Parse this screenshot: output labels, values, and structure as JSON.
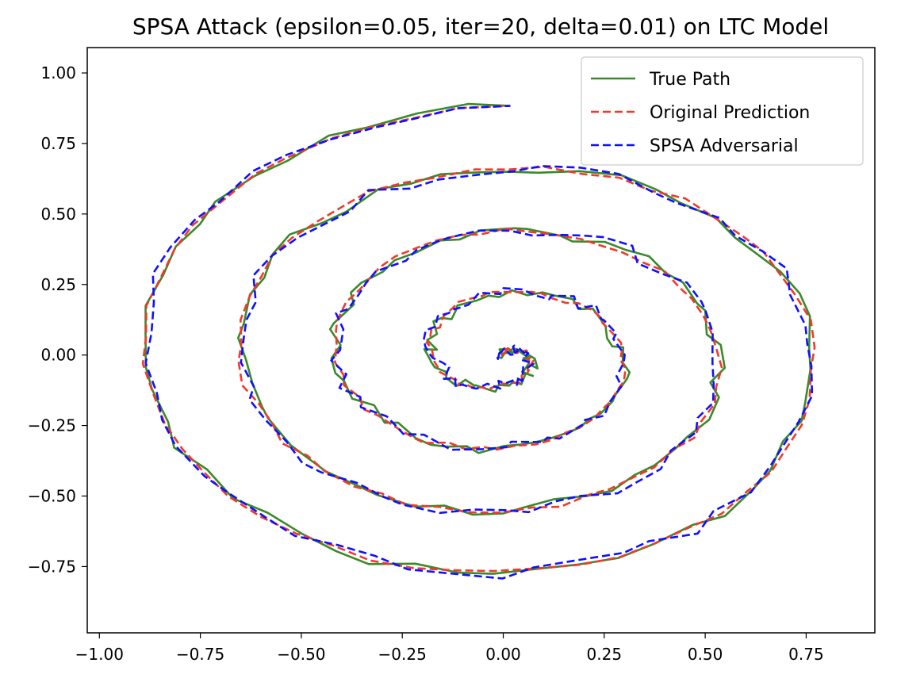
{
  "chart_data": {
    "type": "line",
    "title": "SPSA Attack (epsilon=0.05, iter=20, delta=0.01) on LTC Model",
    "xlabel": "",
    "ylabel": "",
    "xlim": [
      -1.03,
      0.92
    ],
    "ylim": [
      -0.985,
      1.09
    ],
    "xticks": [
      -1.0,
      -0.75,
      -0.5,
      -0.25,
      0.0,
      0.25,
      0.5,
      0.75
    ],
    "xtick_labels": [
      "−1.00",
      "−0.75",
      "−0.50",
      "−0.25",
      "0.00",
      "0.25",
      "0.50",
      "0.75"
    ],
    "yticks": [
      1.0,
      0.75,
      0.5,
      0.25,
      0.0,
      -0.25,
      -0.5,
      -0.75
    ],
    "ytick_labels": [
      "1.00",
      "0.75",
      "0.50",
      "0.25",
      "0.00",
      "−0.25",
      "−0.50",
      "−0.75"
    ],
    "grid": false,
    "legend_position": "top-right",
    "spiral": {
      "end_x": 0.02,
      "end_y": 1.0,
      "turns": 4,
      "outer_radius": 0.95,
      "y_scale": 0.93,
      "samples": 200
    },
    "series": [
      {
        "name": "True Path",
        "color": "#3a8a2a",
        "style": "solid",
        "noise": 0.018,
        "seed": 11
      },
      {
        "name": "Original Prediction",
        "color": "#f03a2a",
        "style": "dashed",
        "noise": 0.01,
        "seed": 23
      },
      {
        "name": "SPSA Adversarial",
        "color": "#1010ff",
        "style": "dashed",
        "noise": 0.02,
        "seed": 37
      }
    ]
  }
}
